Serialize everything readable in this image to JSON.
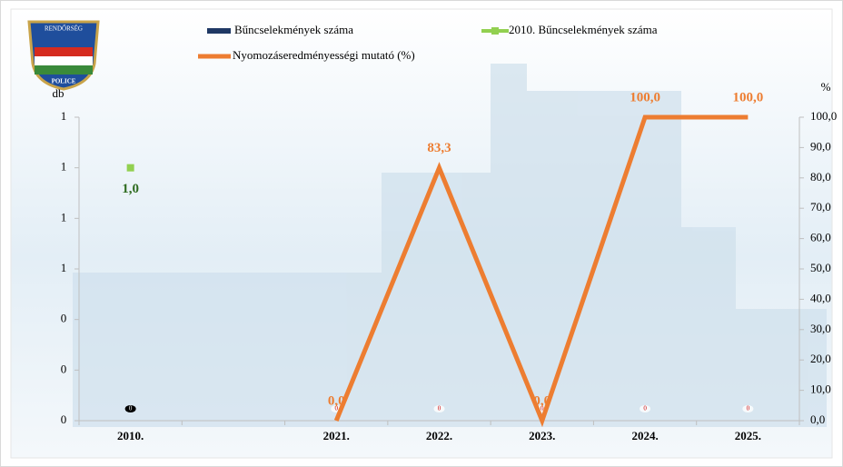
{
  "logo": {
    "top": "RENDŐRSÉG",
    "bottom": "POLICE"
  },
  "chart_data": {
    "type": "combo",
    "y_label": "db",
    "y2_label": "%",
    "legend": "top",
    "categories": [
      "2010.",
      null,
      "2021.",
      "2022.",
      "2023.",
      "2024.",
      "2025."
    ],
    "ylim": [
      0,
      1.2
    ],
    "yticks": [
      0,
      {
        "value": 0.2,
        "label": "0"
      },
      {
        "value": 0.4,
        "label": "0"
      },
      {
        "value": 0.6,
        "label": "1"
      },
      {
        "value": 0.8,
        "label": "1"
      },
      1,
      {
        "value": 1.2,
        "label": "1"
      }
    ],
    "y2lim": [
      0,
      100
    ],
    "y2ticks": [
      {
        "value": 0,
        "label": "0,0"
      },
      {
        "value": 10,
        "label": "10,0"
      },
      {
        "value": 20,
        "label": "20,0"
      },
      {
        "value": 30,
        "label": "30,0"
      },
      {
        "value": 40,
        "label": "40,0"
      },
      {
        "value": 50,
        "label": "50,0"
      },
      {
        "value": 60,
        "label": "60,0"
      },
      {
        "value": 70,
        "label": "70,0"
      },
      {
        "value": 80,
        "label": "80,0"
      },
      {
        "value": 90,
        "label": "90,0"
      },
      {
        "value": 100,
        "label": "100,0"
      }
    ],
    "series": [
      {
        "name": "Bűncselekmények száma",
        "kind": "bar",
        "color": "#1f3864",
        "values": [
          0,
          null,
          0,
          0,
          0,
          0,
          0
        ]
      },
      {
        "name": "2010. Bűncselekmények száma",
        "kind": "marker",
        "color": "#92d050",
        "values": [
          1.0,
          null,
          null,
          null,
          null,
          null,
          null
        ],
        "value_labels": [
          "1,0",
          null,
          null,
          null,
          null,
          null,
          null
        ]
      },
      {
        "name": "Nyomozáseredményességi mutató (%)",
        "kind": "line",
        "axis": "y2",
        "color": "#ed7d31",
        "values": [
          null,
          null,
          0,
          83.3,
          0,
          100,
          100
        ],
        "value_labels": [
          null,
          null,
          "0,0",
          "83,3",
          "0,0",
          "100,0",
          "100,0"
        ]
      }
    ]
  }
}
